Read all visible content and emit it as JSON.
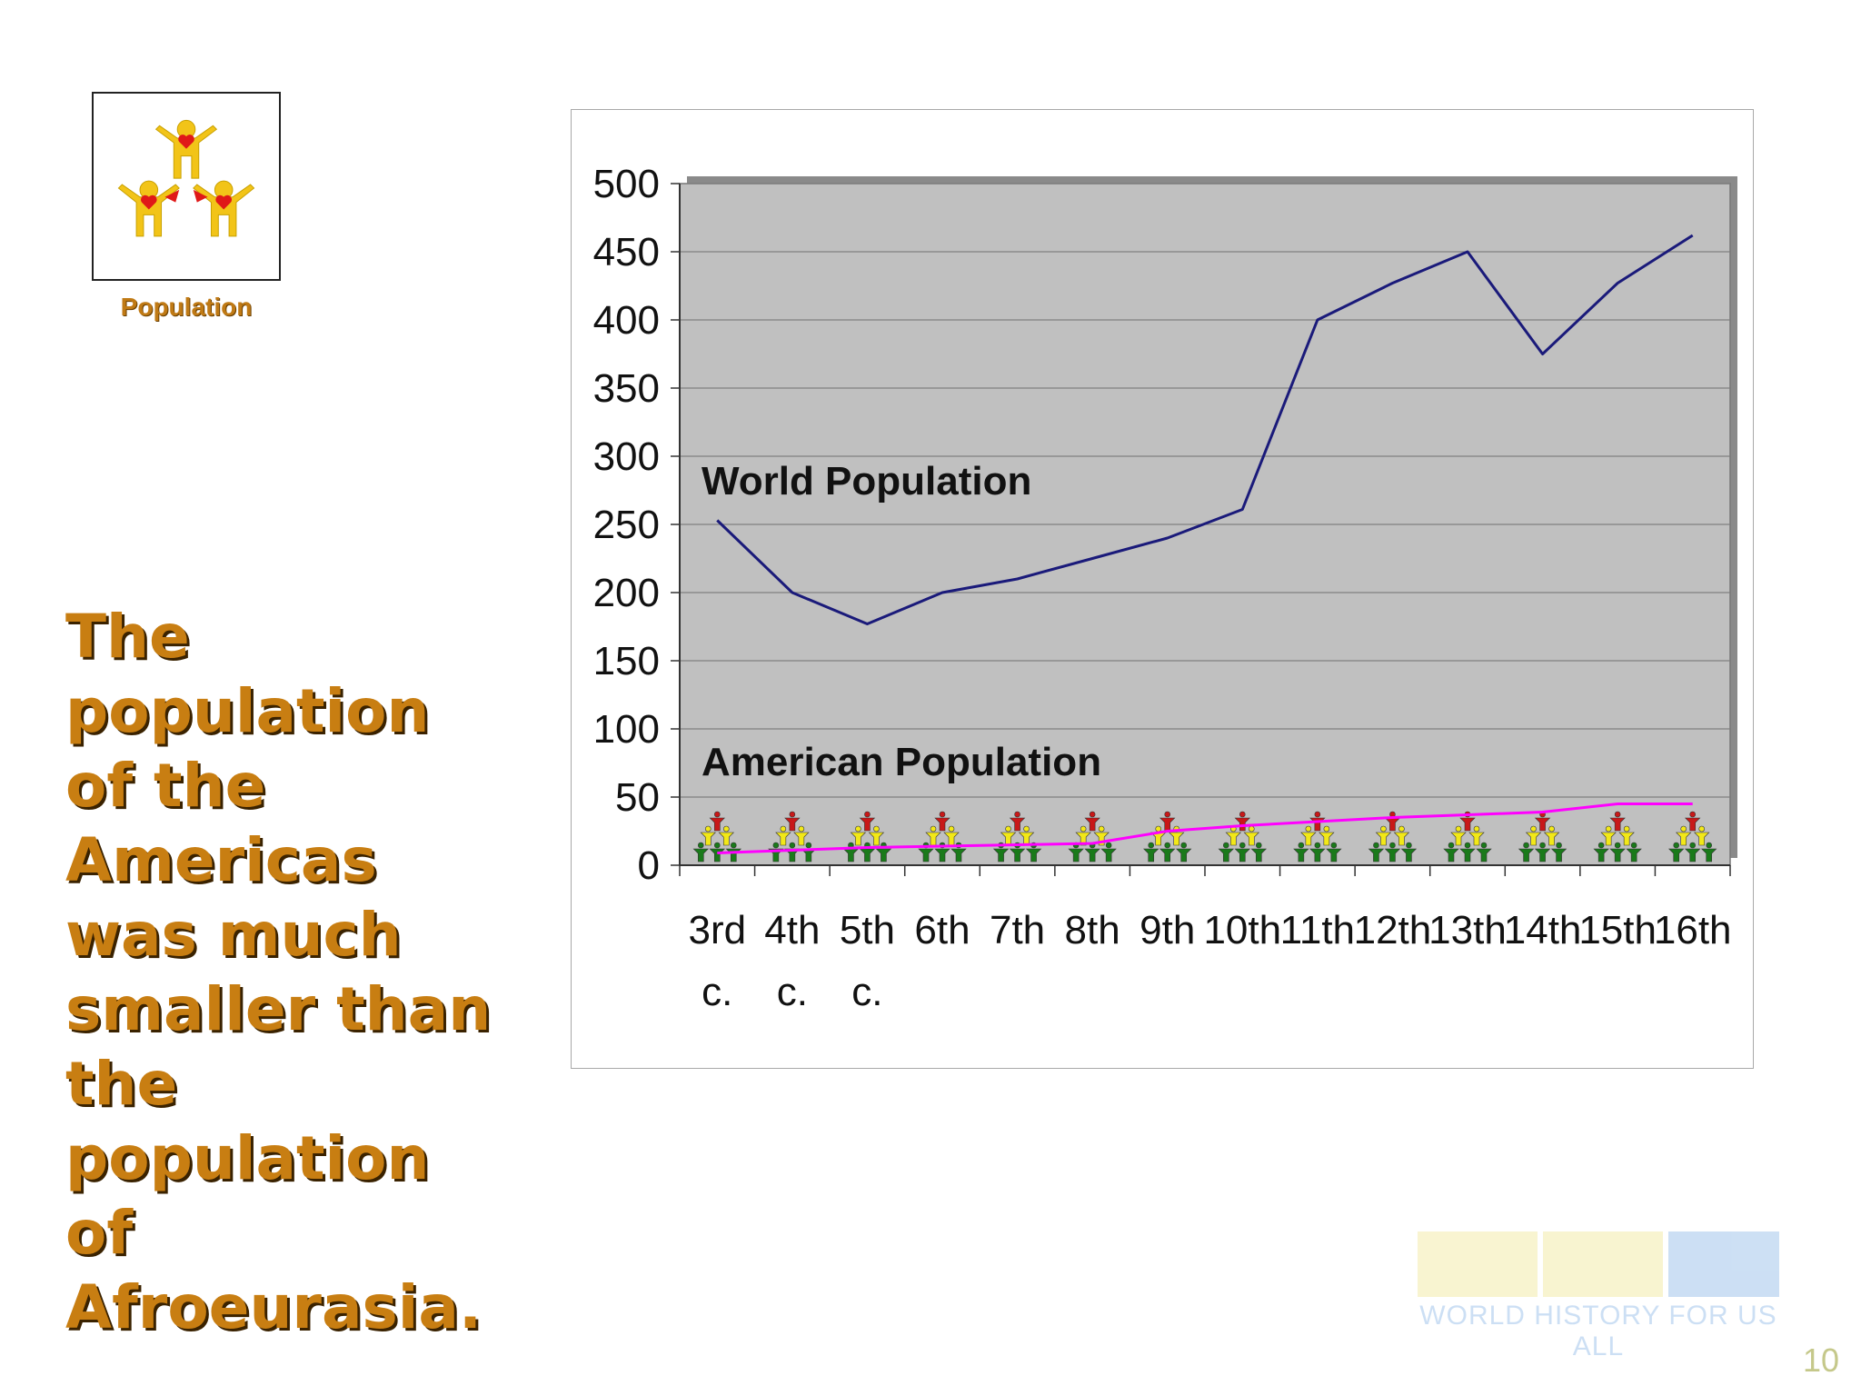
{
  "slide": {
    "icon_label": "Population",
    "headline_lines": [
      "The",
      "population",
      "of the",
      "Americas",
      "was much",
      "smaller than",
      "the",
      "population",
      "of",
      "Afroeurasia."
    ],
    "logo_text": "WORLD HISTORY FOR US ALL",
    "page_number": "10"
  },
  "colors": {
    "headline": "#c87e12",
    "plot_bg": "#c0c0c0",
    "world_line": "#1a1a7a",
    "american_line": "#ff00ff"
  },
  "chart_data": {
    "type": "line",
    "categories": [
      "3rd c.",
      "4th c.",
      "5th c.",
      "6th",
      "7th",
      "8th",
      "9th",
      "10th",
      "11th",
      "12th",
      "13th",
      "14th",
      "15th",
      "16th"
    ],
    "category_lines": [
      [
        "3rd",
        "c."
      ],
      [
        "4th",
        "c."
      ],
      [
        "5th",
        "c."
      ],
      [
        "6th"
      ],
      [
        "7th"
      ],
      [
        "8th"
      ],
      [
        "9th"
      ],
      [
        "10th"
      ],
      [
        "11th"
      ],
      [
        "12th"
      ],
      [
        "13th"
      ],
      [
        "14th"
      ],
      [
        "15th"
      ],
      [
        "16th"
      ]
    ],
    "ylim": [
      0,
      500
    ],
    "yticks": [
      0,
      50,
      100,
      150,
      200,
      250,
      300,
      350,
      400,
      450,
      500
    ],
    "grid": true,
    "series": [
      {
        "name": "World Population",
        "values": [
          253,
          200,
          177,
          200,
          210,
          225,
          240,
          261,
          400,
          427,
          450,
          375,
          427,
          462
        ]
      },
      {
        "name": "American Population",
        "values": [
          9,
          11,
          13,
          14,
          15,
          16,
          25,
          29,
          32,
          35,
          37,
          39,
          45,
          45
        ]
      }
    ]
  }
}
